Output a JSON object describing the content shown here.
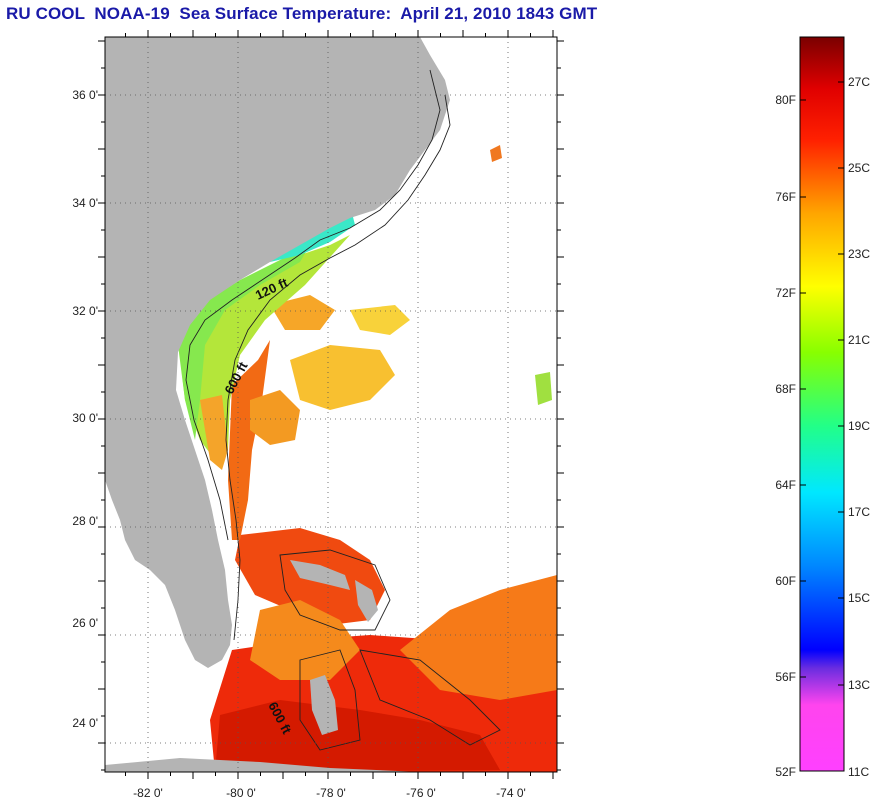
{
  "title": "RU COOL  NOAA-19  Sea Surface Temperature:  April 21, 2010 1843 GMT",
  "map": {
    "lat_labels": [
      {
        "value": 36,
        "label": "36 0'"
      },
      {
        "value": 34,
        "label": "34 0'"
      },
      {
        "value": 32,
        "label": "32 0'"
      },
      {
        "value": 30,
        "label": "30 0'"
      },
      {
        "value": 28,
        "label": "28 0'"
      },
      {
        "value": 26,
        "label": "26 0'"
      },
      {
        "value": 24,
        "label": "24 0'"
      }
    ],
    "lon_labels": [
      {
        "value": -82,
        "label": "-82 0'"
      },
      {
        "value": -80,
        "label": "-80 0'"
      },
      {
        "value": -78,
        "label": "-78 0'"
      },
      {
        "value": -76,
        "label": "-76 0'"
      },
      {
        "value": -74,
        "label": "-74 0'"
      }
    ],
    "depth_labels": [
      "120 ft",
      "600 ft",
      "600 ft"
    ],
    "colors": {
      "land": "#b4b4b4",
      "ocean_no_data": "#ffffff",
      "grid": "#444444"
    }
  },
  "colorbar": {
    "fahrenheit": [
      "80F",
      "76F",
      "72F",
      "68F",
      "64F",
      "60F",
      "56F",
      "52F"
    ],
    "celsius": [
      "27C",
      "25C",
      "23C",
      "21C",
      "19C",
      "17C",
      "15C",
      "13C",
      "11C"
    ],
    "stops": [
      {
        "frac": 0.0,
        "color": "#ff40ff"
      },
      {
        "frac": 0.09,
        "color": "#ff44ee"
      },
      {
        "frac": 0.14,
        "color": "#6a2de0"
      },
      {
        "frac": 0.165,
        "color": "#0000ff"
      },
      {
        "frac": 0.28,
        "color": "#0088ff"
      },
      {
        "frac": 0.38,
        "color": "#00e8ff"
      },
      {
        "frac": 0.47,
        "color": "#22ff88"
      },
      {
        "frac": 0.57,
        "color": "#88ff00"
      },
      {
        "frac": 0.66,
        "color": "#ffff00"
      },
      {
        "frac": 0.76,
        "color": "#ffa500"
      },
      {
        "frac": 0.86,
        "color": "#ff2000"
      },
      {
        "frac": 0.93,
        "color": "#e00000"
      },
      {
        "frac": 1.0,
        "color": "#7a0000"
      }
    ]
  }
}
